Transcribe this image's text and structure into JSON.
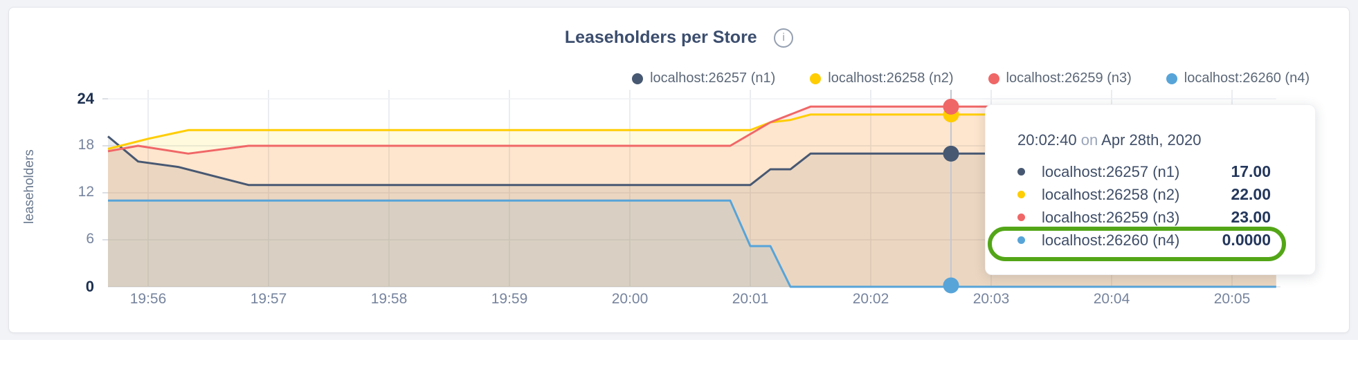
{
  "header": {
    "title": "Leaseholders per Store",
    "info_icon_glyph": "i"
  },
  "chart_data": {
    "type": "area",
    "title": "Leaseholders per Store",
    "ylabel": "leaseholders",
    "ylim": [
      0,
      24
    ],
    "y_ticks": [
      0,
      6,
      12,
      18,
      24
    ],
    "x_ticks": [
      "19:56",
      "19:57",
      "19:58",
      "19:59",
      "20:00",
      "20:01",
      "20:02",
      "20:03",
      "20:04",
      "20:05"
    ],
    "x_range": [
      "19:55:40",
      "20:05:22"
    ],
    "grid": true,
    "legend_position": "top-right",
    "series": [
      {
        "name": "localhost:26257 (n1)",
        "color": "#475872",
        "points": [
          [
            "19:55:40",
            19.2
          ],
          [
            "19:55:55",
            16
          ],
          [
            "19:56:15",
            15.3
          ],
          [
            "19:56:50",
            13
          ],
          [
            "20:01:00",
            13
          ],
          [
            "20:01:10",
            15
          ],
          [
            "20:01:20",
            15
          ],
          [
            "20:01:30",
            17
          ],
          [
            "20:05:22",
            17
          ]
        ]
      },
      {
        "name": "localhost:26258 (n2)",
        "color": "#ffcd02",
        "points": [
          [
            "19:55:40",
            17.6
          ],
          [
            "19:56:00",
            18.9
          ],
          [
            "19:56:20",
            20
          ],
          [
            "20:01:00",
            20
          ],
          [
            "20:01:10",
            21
          ],
          [
            "20:01:20",
            21.3
          ],
          [
            "20:01:30",
            22
          ],
          [
            "20:05:22",
            22
          ]
        ]
      },
      {
        "name": "localhost:26259 (n3)",
        "color": "#f06767",
        "points": [
          [
            "19:55:40",
            17.3
          ],
          [
            "19:55:55",
            18
          ],
          [
            "19:56:20",
            17
          ],
          [
            "19:56:50",
            18
          ],
          [
            "20:00:50",
            18
          ],
          [
            "20:01:10",
            21
          ],
          [
            "20:01:20",
            22
          ],
          [
            "20:01:30",
            23
          ],
          [
            "20:05:22",
            23
          ]
        ]
      },
      {
        "name": "localhost:26260 (n4)",
        "color": "#57a4d9",
        "points": [
          [
            "19:55:40",
            11
          ],
          [
            "20:00:50",
            11
          ],
          [
            "20:01:00",
            5.2
          ],
          [
            "20:01:10",
            5.2
          ],
          [
            "20:01:20",
            0
          ],
          [
            "20:05:22",
            0
          ]
        ]
      }
    ]
  },
  "crosshair": {
    "time": "20:02:40",
    "values": [
      17,
      22,
      23,
      0
    ]
  },
  "tooltip": {
    "time": "20:02:40",
    "on_word": "on",
    "date": "Apr 28th, 2020",
    "rows": [
      {
        "label": "localhost:26257 (n1)",
        "value": "17.00"
      },
      {
        "label": "localhost:26258 (n2)",
        "value": "22.00"
      },
      {
        "label": "localhost:26259 (n3)",
        "value": "23.00"
      },
      {
        "label": "localhost:26260 (n4)",
        "value": "0.0000"
      }
    ],
    "highlight_color": "#53a617"
  }
}
